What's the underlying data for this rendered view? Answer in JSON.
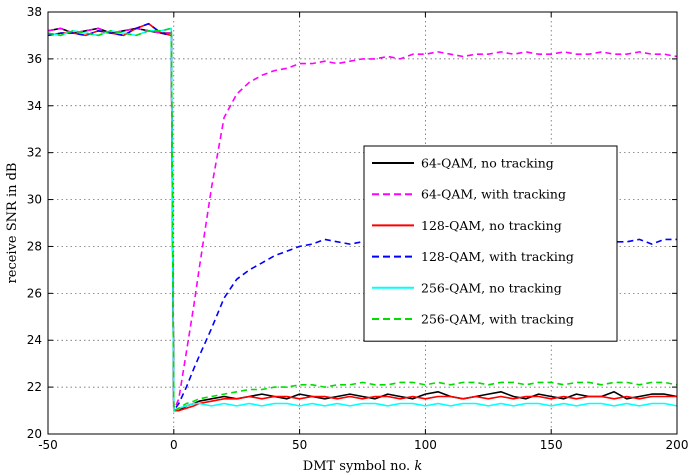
{
  "chart_data": {
    "type": "line",
    "title": "",
    "xlabel": "DMT symbol no.",
    "xlabel_var": "k",
    "ylabel": "receive SNR in dB",
    "xlim": [
      -50,
      200
    ],
    "ylim": [
      20,
      38
    ],
    "xticks": [
      -50,
      0,
      50,
      100,
      150,
      200
    ],
    "yticks": [
      20,
      22,
      24,
      26,
      28,
      30,
      32,
      34,
      36,
      38
    ],
    "grid": true,
    "legend_position": "center-right",
    "x": [
      -50,
      -45,
      -40,
      -35,
      -30,
      -25,
      -20,
      -15,
      -10,
      -5,
      -1,
      0,
      2,
      5,
      8,
      10,
      15,
      20,
      25,
      30,
      35,
      40,
      45,
      50,
      55,
      60,
      65,
      70,
      75,
      80,
      85,
      90,
      95,
      100,
      105,
      110,
      115,
      120,
      125,
      130,
      135,
      140,
      145,
      150,
      155,
      160,
      165,
      170,
      175,
      180,
      185,
      190,
      195,
      200
    ],
    "series": [
      {
        "name": "64-QAM, no tracking",
        "color": "#000000",
        "dash": "solid",
        "values": [
          37.2,
          37.3,
          37.1,
          37.2,
          37.3,
          37.1,
          37.2,
          37.3,
          37.2,
          37.1,
          37.1,
          21.0,
          21.0,
          21.2,
          21.3,
          21.4,
          21.5,
          21.6,
          21.5,
          21.6,
          21.7,
          21.6,
          21.5,
          21.7,
          21.6,
          21.5,
          21.6,
          21.7,
          21.6,
          21.5,
          21.7,
          21.6,
          21.5,
          21.7,
          21.8,
          21.6,
          21.5,
          21.6,
          21.7,
          21.8,
          21.6,
          21.5,
          21.7,
          21.6,
          21.5,
          21.7,
          21.6,
          21.6,
          21.8,
          21.5,
          21.6,
          21.7,
          21.7,
          21.6
        ]
      },
      {
        "name": "64-QAM, with tracking",
        "color": "#ff00ff",
        "dash": "dashed",
        "values": [
          37.2,
          37.3,
          37.1,
          37.2,
          37.3,
          37.1,
          37.2,
          37.3,
          37.2,
          37.1,
          37.1,
          21.0,
          21.5,
          23.5,
          25.5,
          27.0,
          30.5,
          33.5,
          34.5,
          35.0,
          35.3,
          35.5,
          35.6,
          35.8,
          35.8,
          35.9,
          35.8,
          35.9,
          36.0,
          36.0,
          36.1,
          36.0,
          36.2,
          36.2,
          36.3,
          36.2,
          36.1,
          36.2,
          36.2,
          36.3,
          36.2,
          36.3,
          36.2,
          36.2,
          36.3,
          36.2,
          36.2,
          36.3,
          36.2,
          36.2,
          36.3,
          36.2,
          36.2,
          36.1
        ]
      },
      {
        "name": "128-QAM, no tracking",
        "color": "#ff0000",
        "dash": "solid",
        "values": [
          37.0,
          37.1,
          37.1,
          37.0,
          37.2,
          37.1,
          37.0,
          37.3,
          37.5,
          37.1,
          37.0,
          21.0,
          21.0,
          21.1,
          21.2,
          21.3,
          21.4,
          21.5,
          21.5,
          21.6,
          21.5,
          21.6,
          21.6,
          21.5,
          21.6,
          21.6,
          21.5,
          21.6,
          21.5,
          21.6,
          21.6,
          21.5,
          21.6,
          21.5,
          21.6,
          21.6,
          21.5,
          21.6,
          21.5,
          21.6,
          21.5,
          21.6,
          21.6,
          21.5,
          21.6,
          21.5,
          21.6,
          21.6,
          21.5,
          21.6,
          21.5,
          21.6,
          21.6,
          21.6
        ]
      },
      {
        "name": "128-QAM, with tracking",
        "color": "#0000ff",
        "dash": "dashed",
        "values": [
          37.0,
          37.1,
          37.1,
          37.0,
          37.2,
          37.1,
          37.0,
          37.3,
          37.5,
          37.1,
          37.0,
          21.0,
          21.3,
          22.0,
          22.8,
          23.3,
          24.5,
          25.8,
          26.6,
          27.0,
          27.3,
          27.6,
          27.8,
          28.0,
          28.1,
          28.3,
          28.2,
          28.1,
          28.2,
          28.0,
          28.1,
          28.2,
          28.1,
          28.3,
          28.2,
          28.1,
          28.2,
          28.2,
          28.3,
          28.1,
          28.2,
          28.2,
          28.3,
          28.1,
          28.2,
          28.2,
          28.1,
          28.3,
          28.2,
          28.2,
          28.3,
          28.1,
          28.3,
          28.3
        ]
      },
      {
        "name": "256-QAM, no tracking",
        "color": "#00ffff",
        "dash": "solid",
        "values": [
          37.1,
          37.0,
          37.2,
          37.1,
          37.0,
          37.2,
          37.1,
          37.0,
          37.2,
          37.2,
          37.3,
          21.0,
          21.1,
          21.2,
          21.3,
          21.3,
          21.2,
          21.3,
          21.2,
          21.3,
          21.2,
          21.3,
          21.3,
          21.2,
          21.3,
          21.2,
          21.3,
          21.2,
          21.3,
          21.3,
          21.2,
          21.3,
          21.3,
          21.2,
          21.3,
          21.2,
          21.3,
          21.3,
          21.2,
          21.3,
          21.2,
          21.3,
          21.3,
          21.2,
          21.3,
          21.2,
          21.3,
          21.3,
          21.2,
          21.3,
          21.2,
          21.3,
          21.3,
          21.2
        ]
      },
      {
        "name": "256-QAM, with tracking",
        "color": "#00dd00",
        "dash": "dashed",
        "values": [
          37.1,
          37.0,
          37.2,
          37.1,
          37.0,
          37.2,
          37.1,
          37.0,
          37.2,
          37.2,
          37.3,
          21.0,
          21.1,
          21.3,
          21.4,
          21.5,
          21.6,
          21.7,
          21.8,
          21.9,
          21.9,
          22.0,
          22.0,
          22.1,
          22.1,
          22.0,
          22.1,
          22.1,
          22.2,
          22.1,
          22.1,
          22.2,
          22.2,
          22.1,
          22.2,
          22.1,
          22.2,
          22.2,
          22.1,
          22.2,
          22.2,
          22.1,
          22.2,
          22.2,
          22.1,
          22.2,
          22.2,
          22.1,
          22.2,
          22.2,
          22.1,
          22.2,
          22.2,
          22.1
        ]
      }
    ]
  }
}
